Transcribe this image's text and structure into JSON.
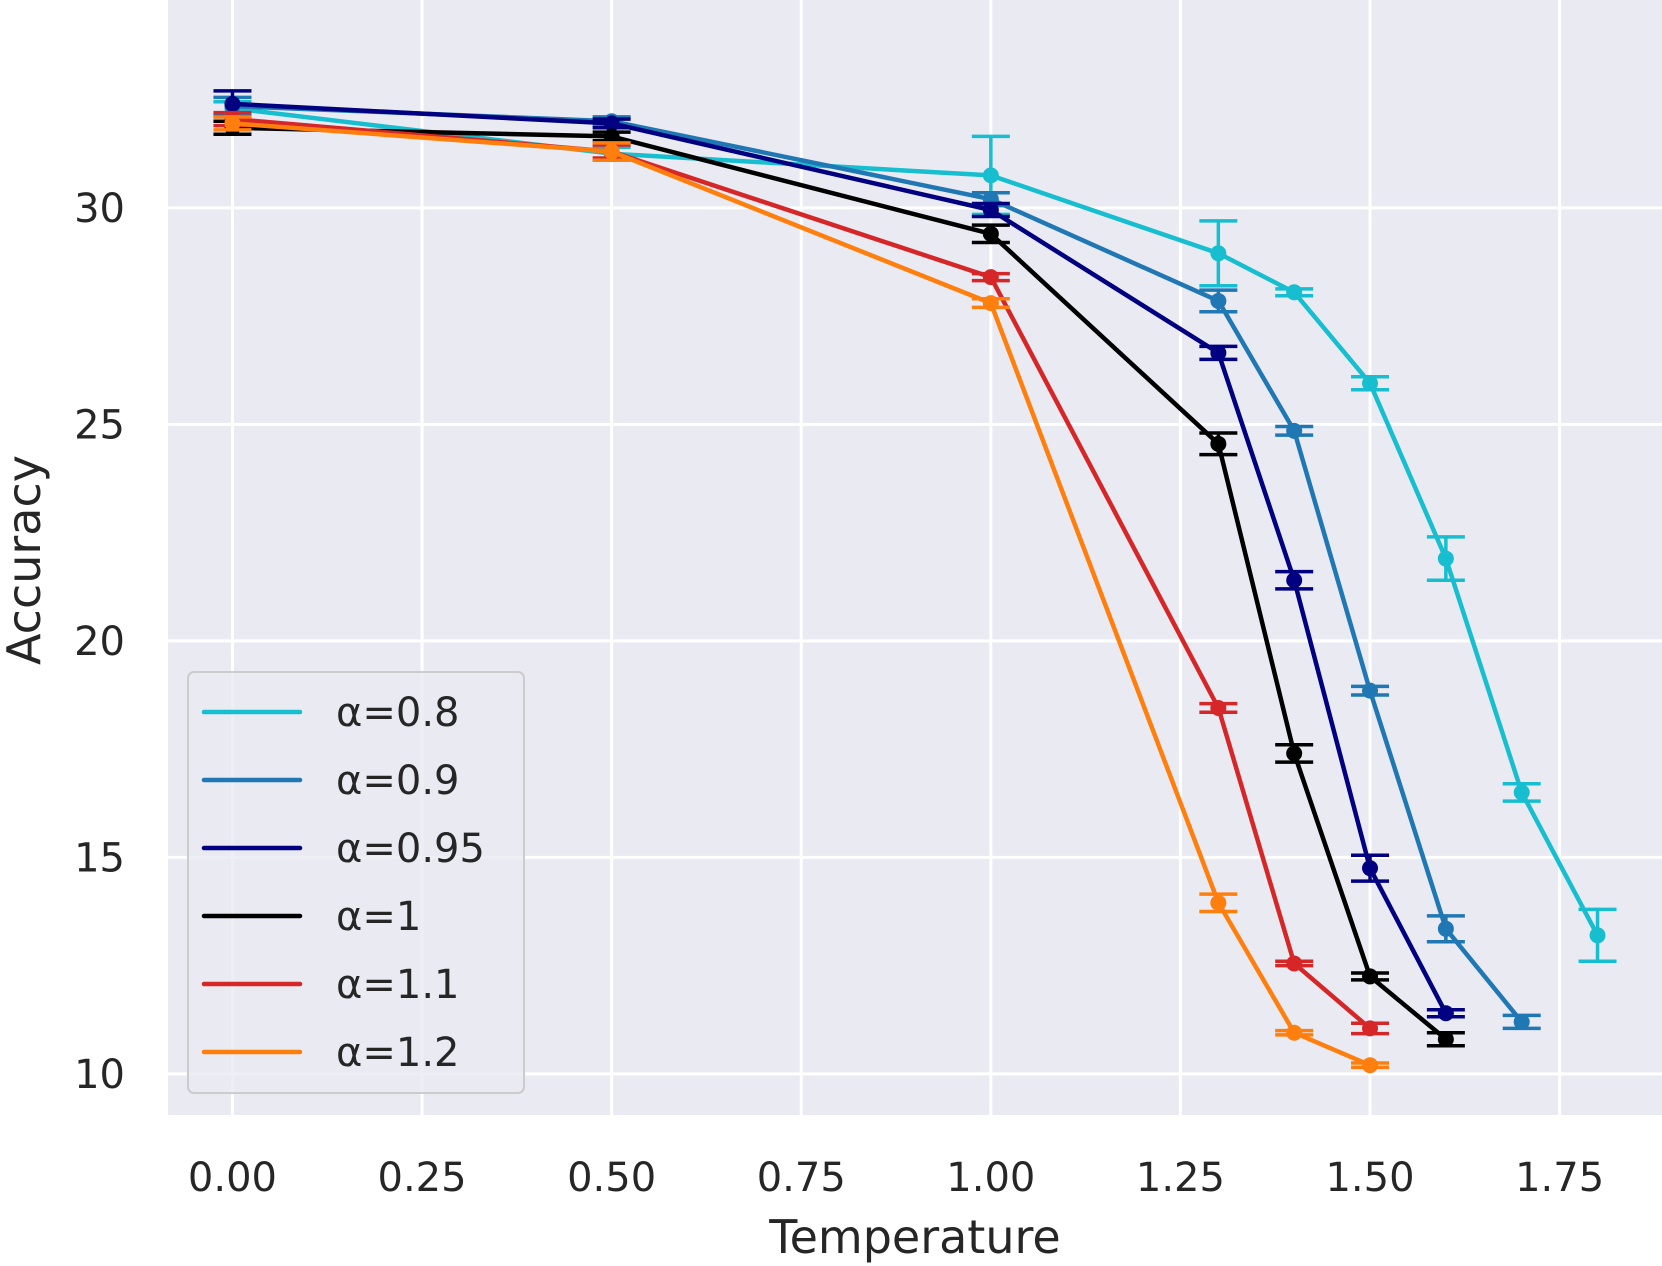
{
  "chart_data": {
    "type": "line",
    "title": "",
    "xlabel": "Temperature",
    "ylabel": "Accuracy",
    "xlim": [
      -0.085,
      1.885
    ],
    "ylim": [
      9.05,
      34.8
    ],
    "xticks": [
      0.0,
      0.25,
      0.5,
      0.75,
      1.0,
      1.25,
      1.5,
      1.75
    ],
    "xtick_labels": [
      "0.00",
      "0.25",
      "0.50",
      "0.75",
      "1.00",
      "1.25",
      "1.50",
      "1.75"
    ],
    "yticks": [
      10,
      15,
      20,
      25,
      30
    ],
    "ytick_labels": [
      "10",
      "15",
      "20",
      "25",
      "30"
    ],
    "grid": true,
    "legend_position": "lower-left",
    "series": [
      {
        "name": "α=0.8",
        "color": "#17becf",
        "x": [
          0.0,
          0.5,
          1.0,
          1.3,
          1.4,
          1.5,
          1.6,
          1.7,
          1.8
        ],
        "y": [
          32.3,
          31.25,
          30.75,
          28.95,
          28.05,
          25.95,
          21.9,
          16.5,
          13.2
        ],
        "err": [
          0.15,
          0.15,
          0.9,
          0.75,
          0.08,
          0.15,
          0.5,
          0.2,
          0.6
        ]
      },
      {
        "name": "α=0.9",
        "color": "#1f77b4",
        "x": [
          0.0,
          0.5,
          1.0,
          1.3,
          1.4,
          1.5,
          1.6,
          1.7
        ],
        "y": [
          32.35,
          32.0,
          30.2,
          27.85,
          24.85,
          18.85,
          13.35,
          11.2
        ],
        "err": [
          0.2,
          0.1,
          0.15,
          0.25,
          0.1,
          0.1,
          0.3,
          0.15
        ]
      },
      {
        "name": "α=0.95",
        "color": "#000080",
        "x": [
          0.0,
          0.5,
          1.0,
          1.3,
          1.4,
          1.5,
          1.6
        ],
        "y": [
          32.4,
          31.95,
          29.95,
          26.65,
          21.4,
          14.75,
          11.4
        ],
        "err": [
          0.3,
          0.1,
          0.15,
          0.15,
          0.2,
          0.3,
          0.08
        ]
      },
      {
        "name": "α=1",
        "color": "#000000",
        "x": [
          0.0,
          0.5,
          1.0,
          1.3,
          1.4,
          1.5,
          1.6
        ],
        "y": [
          31.85,
          31.65,
          29.4,
          24.55,
          17.4,
          12.25,
          10.8
        ],
        "err": [
          0.15,
          0.1,
          0.2,
          0.25,
          0.2,
          0.08,
          0.15
        ]
      },
      {
        "name": "α=1.1",
        "color": "#d62728",
        "x": [
          0.0,
          0.5,
          1.0,
          1.3,
          1.4,
          1.5
        ],
        "y": [
          32.05,
          31.3,
          28.4,
          18.45,
          12.55,
          11.05
        ],
        "err": [
          0.15,
          0.15,
          0.08,
          0.1,
          0.05,
          0.12
        ]
      },
      {
        "name": "α=1.2",
        "color": "#ff7f0e",
        "x": [
          0.0,
          0.5,
          1.0,
          1.3,
          1.4,
          1.5
        ],
        "y": [
          31.95,
          31.3,
          27.8,
          13.95,
          10.95,
          10.2
        ],
        "err": [
          0.15,
          0.2,
          0.1,
          0.2,
          0.05,
          0.05
        ]
      }
    ]
  }
}
